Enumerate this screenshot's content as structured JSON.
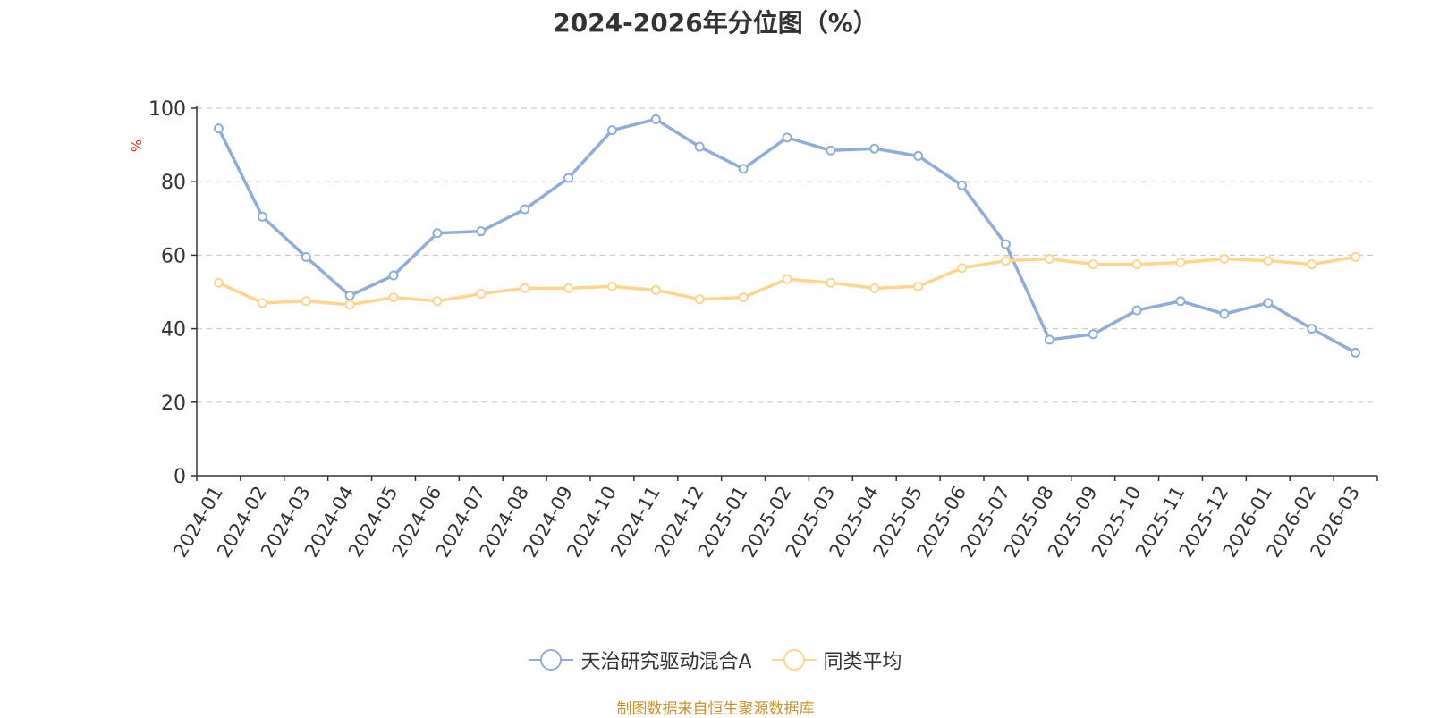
{
  "chart_data": {
    "type": "line",
    "title": "2024-2026年分位图（%）",
    "ylabel": "%",
    "xlabel": "",
    "ylim": [
      0,
      100
    ],
    "yticks": [
      0,
      20,
      40,
      60,
      80,
      100
    ],
    "grid": true,
    "legend_position": "bottom-center",
    "categories": [
      "2024-01",
      "2024-02",
      "2024-03",
      "2024-04",
      "2024-05",
      "2024-06",
      "2024-07",
      "2024-08",
      "2024-09",
      "2024-10",
      "2024-11",
      "2024-12",
      "2025-01",
      "2025-02",
      "2025-03",
      "2025-04",
      "2025-05",
      "2025-06",
      "2025-07",
      "2025-08",
      "2025-09",
      "2025-10",
      "2025-11",
      "2025-12",
      "2026-01",
      "2026-02",
      "2026-03"
    ],
    "series": [
      {
        "name": "天治研究驱动混合A",
        "color": "#8eadd9",
        "values": [
          94.5,
          70.5,
          59.5,
          49.0,
          54.5,
          66.0,
          66.5,
          72.5,
          81.0,
          94.0,
          97.0,
          89.5,
          83.5,
          92.0,
          88.5,
          89.0,
          87.0,
          79.0,
          63.0,
          37.0,
          38.5,
          45.0,
          47.5,
          44.0,
          47.0,
          40.0,
          33.5
        ]
      },
      {
        "name": "同类平均",
        "color": "#fcd58e",
        "values": [
          52.5,
          47.0,
          47.5,
          46.5,
          48.5,
          47.5,
          49.5,
          51.0,
          51.0,
          51.5,
          50.5,
          48.0,
          48.5,
          53.5,
          52.5,
          51.0,
          51.5,
          56.5,
          58.5,
          59.0,
          57.5,
          57.5,
          58.0,
          59.0,
          58.5,
          57.5,
          59.5
        ]
      }
    ]
  },
  "footer": {
    "source": "制图数据来自恒生聚源数据库"
  }
}
